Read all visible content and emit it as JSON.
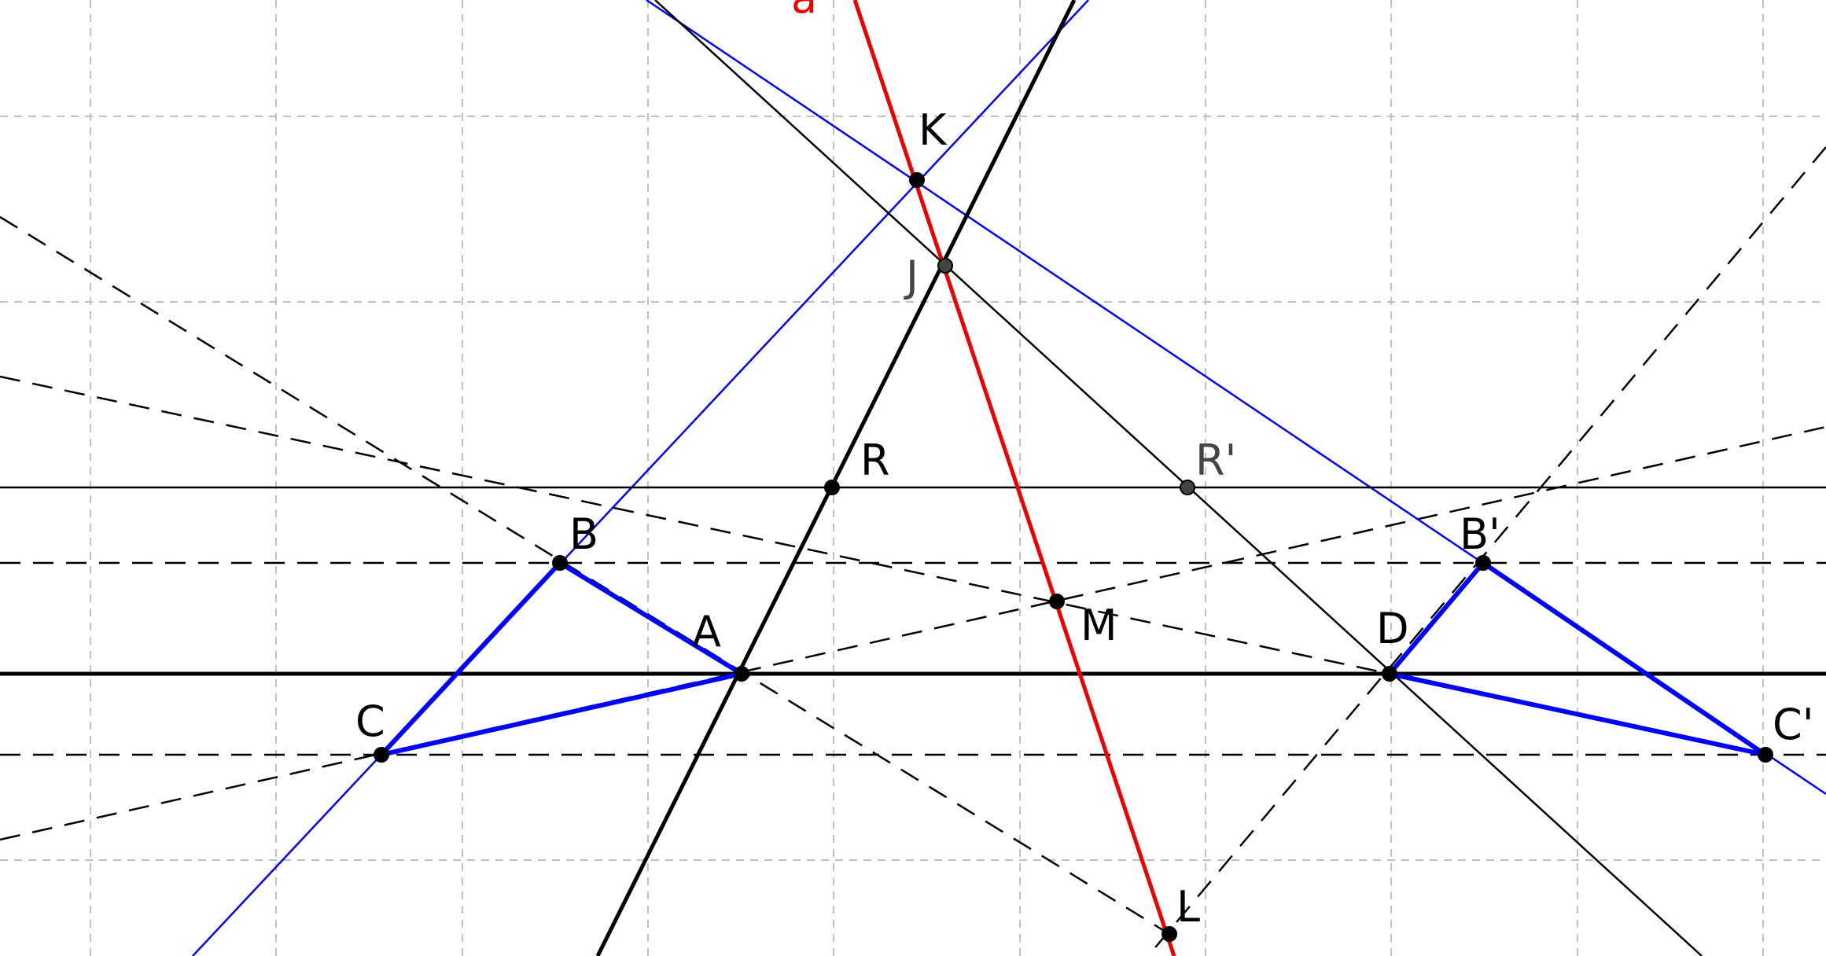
{
  "colors": {
    "background": "#ffffff",
    "grid": "#c0c0c0",
    "black": "#000000",
    "blue": "#0000ff",
    "red": "#ee0000",
    "gray_label": "#444444"
  },
  "labels": {
    "a": "a",
    "K": "K",
    "J": "J",
    "R": "R",
    "R_prime": "R'",
    "B": "B",
    "B_prime": "B'",
    "A": "A",
    "D": "D",
    "M": "M",
    "C": "C",
    "C_prime": "C'",
    "L": "L"
  }
}
